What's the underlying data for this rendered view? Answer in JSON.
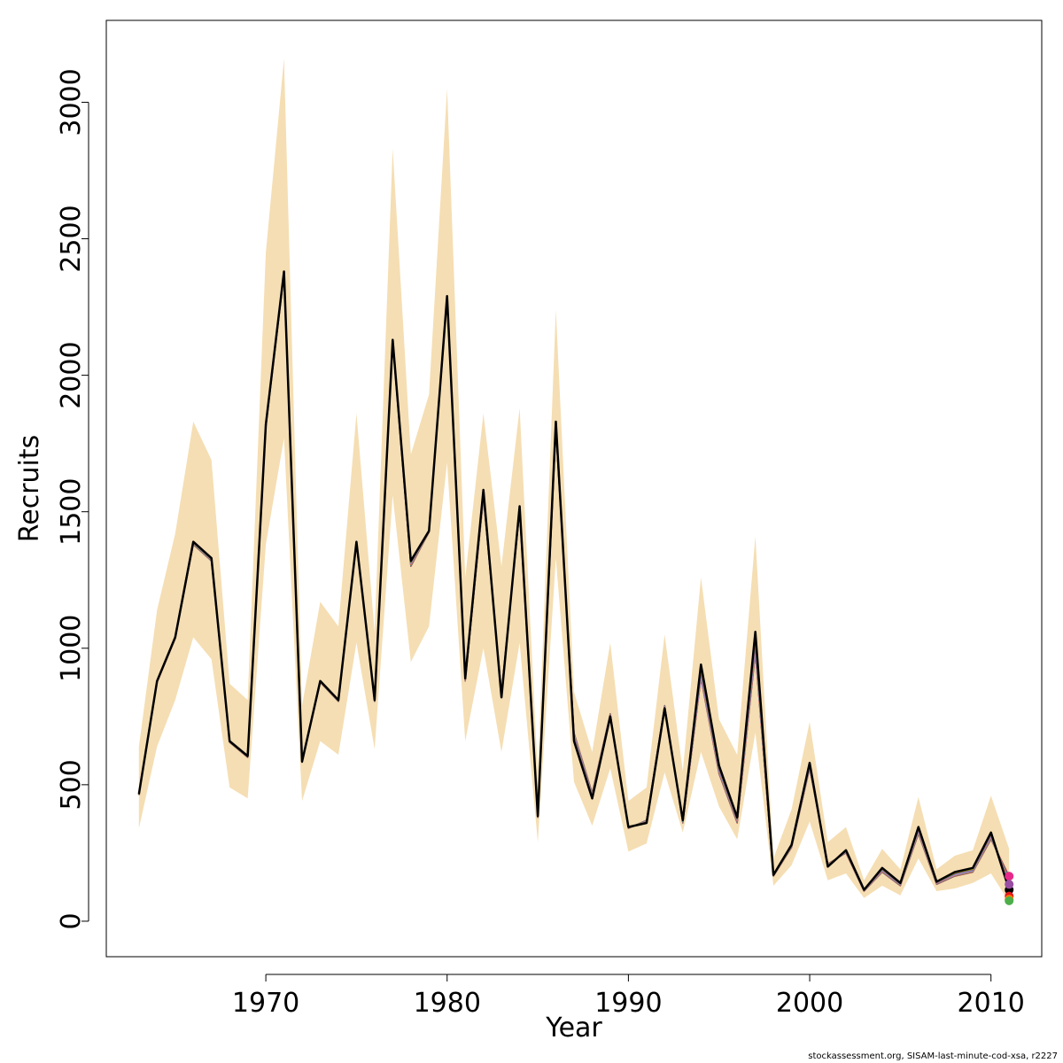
{
  "credit": "stockassessment.org, SISAM-last-minute-cod-xsa, r2227",
  "colors": {
    "band": "#F5DEB3",
    "main_line": "#000000",
    "retro": [
      "#E41A1C",
      "#377EB8",
      "#4DAF4A",
      "#984EA3",
      "#FF7F00",
      "#A65628",
      "#F781BF",
      "#00B5D8",
      "#E7298A",
      "#66A61E",
      "#E6AB02",
      "#7570B3"
    ]
  },
  "chart_data": {
    "type": "line",
    "title": "",
    "xlabel": "Year",
    "ylabel": "Recruits",
    "xlim": [
      1961.2,
      2012.8
    ],
    "ylim": [
      -130,
      3300
    ],
    "x_ticks": [
      1970,
      1980,
      1990,
      2000,
      2010
    ],
    "y_ticks": [
      0,
      500,
      1000,
      1500,
      2000,
      2500,
      3000
    ],
    "grid": false,
    "x": [
      1963,
      1964,
      1965,
      1966,
      1967,
      1968,
      1969,
      1970,
      1971,
      1972,
      1973,
      1974,
      1975,
      1976,
      1977,
      1978,
      1979,
      1980,
      1981,
      1982,
      1983,
      1984,
      1985,
      1986,
      1987,
      1988,
      1989,
      1990,
      1991,
      1992,
      1993,
      1994,
      1995,
      1996,
      1997,
      1998,
      1999,
      2000,
      2001,
      2002,
      2003,
      2004,
      2005,
      2006,
      2007,
      2008,
      2009,
      2010,
      2011
    ],
    "band_lower": [
      340,
      640,
      810,
      1040,
      960,
      490,
      450,
      1380,
      1770,
      440,
      660,
      610,
      1020,
      630,
      1560,
      950,
      1080,
      1680,
      660,
      1000,
      620,
      1020,
      290,
      1330,
      510,
      350,
      560,
      255,
      285,
      545,
      325,
      620,
      420,
      300,
      690,
      130,
      205,
      365,
      150,
      175,
      85,
      130,
      95,
      230,
      110,
      120,
      140,
      175,
      70
    ],
    "band_upper": [
      640,
      1140,
      1420,
      1830,
      1690,
      870,
      810,
      2450,
      3160,
      790,
      1170,
      1080,
      1860,
      1060,
      2830,
      1710,
      1930,
      3050,
      1260,
      1860,
      1300,
      1880,
      540,
      2240,
      840,
      620,
      1020,
      440,
      490,
      1050,
      550,
      1260,
      740,
      610,
      1410,
      230,
      410,
      730,
      290,
      345,
      150,
      265,
      190,
      455,
      190,
      240,
      260,
      460,
      265
    ],
    "series": [
      {
        "values": [
          465,
          880,
          1040,
          1390,
          1330,
          660,
          605,
          1820,
          2380,
          585,
          880,
          810,
          1390,
          810,
          2130,
          1320,
          1430,
          2290,
          890,
          1580,
          820,
          1520,
          385,
          1830,
          660,
          450,
          750,
          345,
          360,
          780,
          370,
          940,
          570,
          380,
          1060,
          170,
          280,
          580,
          200,
          260,
          115,
          195,
          140,
          345,
          145,
          180,
          195,
          325,
          115
        ]
      },
      {
        "values": [
          462,
          875,
          1035,
          1380,
          1320,
          655,
          600,
          1810,
          2370,
          582,
          875,
          805,
          1385,
          805,
          2120,
          1300,
          1425,
          2280,
          880,
          1550,
          840,
          1500,
          380,
          1800,
          690,
          470,
          760,
          340,
          370,
          790,
          360,
          890,
          540,
          360,
          980,
          165,
          270,
          560,
          210,
          250,
          110,
          180,
          130,
          320,
          135,
          165,
          180,
          300,
          165
        ]
      },
      {
        "values": [
          463,
          878,
          1038,
          1385,
          1325,
          658,
          602,
          1815,
          2375,
          583,
          877,
          808,
          1388,
          808,
          2125,
          1310,
          1428,
          2285,
          885,
          1560,
          830,
          1510,
          382,
          1810,
          680,
          460,
          755,
          342,
          365,
          785,
          365,
          900,
          550,
          370,
          1000,
          168,
          275,
          565,
          205,
          255,
          112,
          185,
          135,
          330,
          140,
          170,
          185,
          310,
          135
        ]
      }
    ]
  }
}
